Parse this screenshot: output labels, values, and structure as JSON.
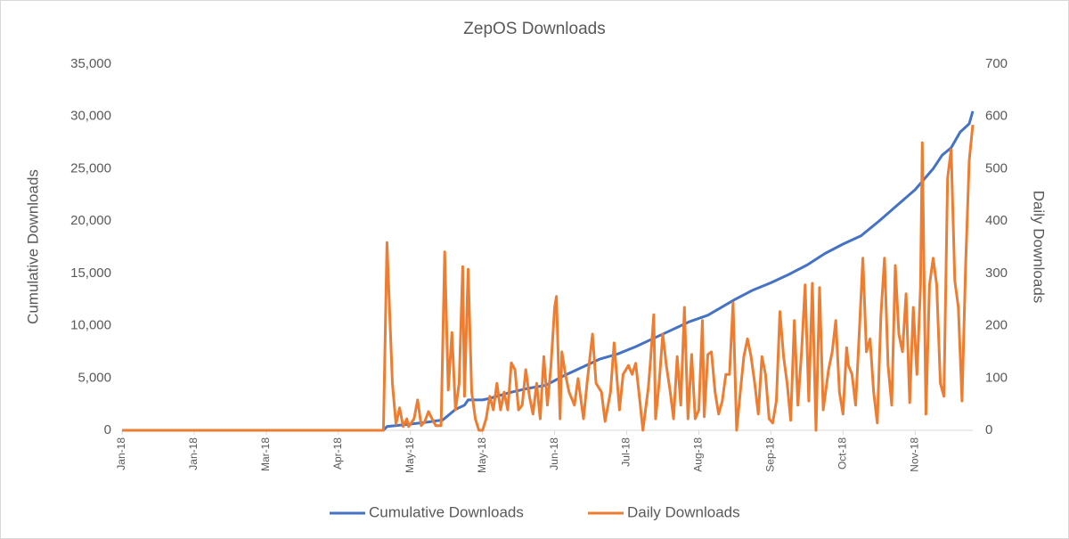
{
  "chart_data": {
    "type": "line",
    "title": "ZepOS Downloads",
    "y_label": "Cumulative Downloads",
    "y2_label": "Daily Downloads",
    "ylim": [
      0,
      35000
    ],
    "yticks": [
      0,
      {
        "value": 5000,
        "label": "5,000"
      },
      {
        "value": 10000,
        "label": "10,000"
      },
      {
        "value": 15000,
        "label": "15,000"
      },
      {
        "value": 20000,
        "label": "20,000"
      },
      {
        "value": 25000,
        "label": "25,000"
      },
      {
        "value": 30000,
        "label": "30,000"
      },
      {
        "value": 35000,
        "label": "35,000"
      }
    ],
    "y2lim": [
      0,
      700
    ],
    "y2ticks": [
      0,
      100,
      200,
      300,
      400,
      500,
      600,
      700
    ],
    "xlim": [
      0,
      472
    ],
    "xticks": [
      {
        "value": 0,
        "label": "Jan-18"
      },
      {
        "value": 40,
        "label": "Jan-18"
      },
      {
        "value": 80,
        "label": "Mar-18"
      },
      {
        "value": 120,
        "label": "Apr-18"
      },
      {
        "value": 160,
        "label": "May-18"
      },
      {
        "value": 200,
        "label": "May-18"
      },
      {
        "value": 240,
        "label": "Jun-18"
      },
      {
        "value": 280,
        "label": "Jul-18"
      },
      {
        "value": 320,
        "label": "Aug-18"
      },
      {
        "value": 360,
        "label": "Sep-18"
      },
      {
        "value": 400,
        "label": "Oct-18"
      },
      {
        "value": 440,
        "label": "Nov-18"
      }
    ],
    "legend": "bottom",
    "series": [
      {
        "name": "Cumulative Downloads",
        "color": "#4472c4",
        "axis": "y",
        "x": [
          0,
          145,
          147,
          160,
          170,
          178,
          185,
          190,
          192,
          200,
          205,
          215,
          225,
          235,
          245,
          255,
          265,
          275,
          285,
          295,
          305,
          315,
          325,
          335,
          340,
          350,
          360,
          370,
          380,
          390,
          400,
          410,
          420,
          430,
          440,
          450,
          455,
          460,
          465,
          470,
          472
        ],
        "values": [
          0,
          0,
          360,
          600,
          800,
          1000,
          2000,
          2400,
          2900,
          2900,
          3100,
          3600,
          4000,
          4300,
          5200,
          6000,
          6800,
          7300,
          8000,
          8800,
          9600,
          10400,
          11000,
          12000,
          12500,
          13400,
          14100,
          14900,
          15800,
          16900,
          17800,
          18600,
          20000,
          21500,
          23000,
          25000,
          26300,
          27000,
          28500,
          29300,
          30500
        ]
      },
      {
        "name": "Daily Downloads",
        "color": "#ed7d31",
        "axis": "y2",
        "x": [
          0,
          145,
          147,
          150,
          152,
          154,
          156,
          158,
          159,
          162,
          164,
          166,
          168,
          170,
          172,
          174,
          177,
          179,
          181,
          183,
          185,
          187,
          189,
          190,
          192,
          194,
          196,
          198,
          200,
          202,
          204,
          206,
          208,
          210,
          212,
          214,
          216,
          218,
          220,
          222,
          224,
          226,
          228,
          230,
          232,
          234,
          236,
          238,
          240,
          241,
          243,
          244,
          246,
          248,
          251,
          253,
          256,
          258,
          261,
          263,
          266,
          268,
          271,
          273,
          276,
          278,
          281,
          283,
          285,
          287,
          289,
          292,
          293,
          295,
          296,
          298,
          300,
          302,
          304,
          306,
          308,
          310,
          312,
          314,
          316,
          318,
          320,
          322,
          323,
          325,
          327,
          329,
          331,
          333,
          335,
          337,
          339,
          341,
          343,
          345,
          347,
          349,
          351,
          353,
          355,
          357,
          359,
          361,
          363,
          365,
          367,
          369,
          371,
          373,
          375,
          377,
          379,
          381,
          383,
          385,
          387,
          389,
          392,
          394,
          396,
          398,
          400,
          402,
          403,
          405,
          407,
          409,
          411,
          413,
          415,
          417,
          419,
          421,
          423,
          425,
          427,
          429,
          431,
          433,
          435,
          437,
          439,
          441,
          443,
          444,
          446,
          448,
          450,
          452,
          454,
          456,
          458,
          460,
          462,
          464,
          466,
          468,
          470,
          472
        ],
        "values": [
          0,
          0,
          359,
          90,
          12,
          43,
          7,
          22,
          7,
          22,
          58,
          9,
          17,
          36,
          22,
          9,
          9,
          341,
          77,
          187,
          39,
          90,
          313,
          65,
          308,
          73,
          22,
          0,
          0,
          22,
          65,
          39,
          90,
          39,
          73,
          39,
          129,
          116,
          39,
          48,
          116,
          65,
          31,
          90,
          22,
          141,
          48,
          124,
          235,
          256,
          22,
          150,
          107,
          73,
          48,
          99,
          22,
          90,
          184,
          90,
          73,
          17,
          73,
          167,
          39,
          107,
          124,
          107,
          128,
          65,
          0,
          82,
          124,
          221,
          22,
          90,
          184,
          124,
          77,
          22,
          141,
          48,
          235,
          22,
          145,
          22,
          39,
          210,
          26,
          145,
          150,
          73,
          31,
          56,
          107,
          107,
          244,
          0,
          73,
          141,
          175,
          141,
          90,
          31,
          141,
          107,
          22,
          14,
          56,
          227,
          141,
          90,
          19,
          210,
          48,
          150,
          278,
          56,
          281,
          0,
          273,
          39,
          116,
          150,
          210,
          73,
          31,
          158,
          124,
          107,
          48,
          184,
          329,
          150,
          175,
          73,
          14,
          218,
          329,
          124,
          48,
          315,
          184,
          150,
          261,
          53,
          235,
          107,
          274,
          550,
          31,
          278,
          329,
          278,
          90,
          65,
          482,
          537,
          286,
          235,
          56,
          312,
          516,
          584
        ]
      }
    ]
  }
}
